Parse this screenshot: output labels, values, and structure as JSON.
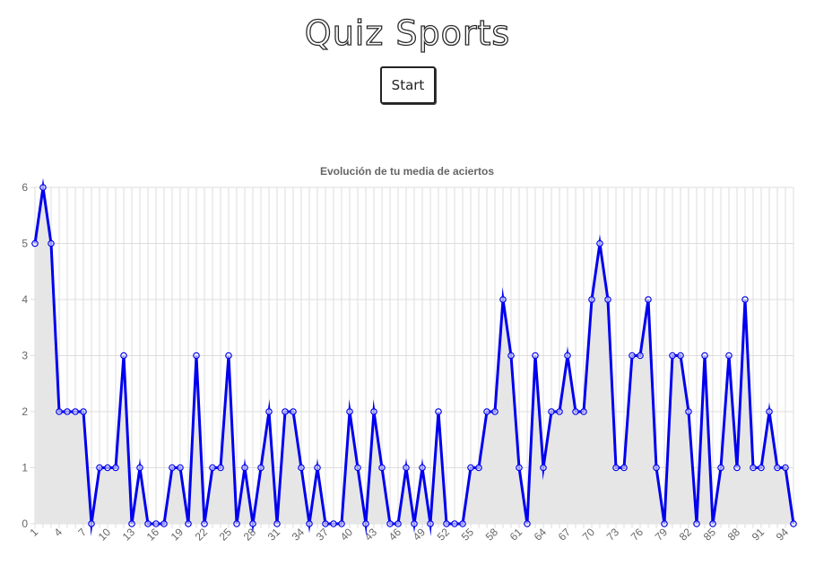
{
  "header": {
    "title": "Quiz Sports",
    "start_label": "Start"
  },
  "chart_data": {
    "type": "line",
    "title": "Evolución de tu media de aciertos",
    "x": [
      1,
      2,
      3,
      4,
      5,
      6,
      7,
      8,
      9,
      10,
      11,
      12,
      13,
      14,
      15,
      16,
      17,
      18,
      19,
      20,
      21,
      22,
      23,
      24,
      25,
      26,
      27,
      28,
      29,
      30,
      31,
      32,
      33,
      34,
      35,
      36,
      37,
      38,
      39,
      40,
      41,
      42,
      43,
      44,
      45,
      46,
      47,
      48,
      49,
      50,
      51,
      52,
      53,
      54,
      55,
      56,
      57,
      58,
      59,
      60,
      61,
      62,
      63,
      64,
      65,
      66,
      67,
      68,
      69,
      70,
      71,
      72,
      73,
      74,
      75,
      76,
      77,
      78,
      79,
      80,
      81,
      82,
      83,
      84,
      85,
      86,
      87,
      88,
      89,
      90,
      91,
      92,
      93,
      94,
      95
    ],
    "x_tick_labels": [
      "1",
      "4",
      "7",
      "10",
      "13",
      "16",
      "19",
      "22",
      "25",
      "28",
      "31",
      "34",
      "37",
      "40",
      "43",
      "46",
      "49",
      "52",
      "55",
      "58",
      "61",
      "64",
      "67",
      "70",
      "73",
      "76",
      "79",
      "82",
      "85",
      "88",
      "91",
      "94"
    ],
    "y_ticks": [
      "0",
      "1",
      "2",
      "3",
      "4",
      "5",
      "6"
    ],
    "series": [
      {
        "values": [
          5,
          6,
          5,
          2,
          2,
          2,
          2,
          0,
          1,
          1,
          1,
          3,
          0,
          1,
          0,
          0,
          0,
          1,
          1,
          0,
          3,
          0,
          1,
          1,
          3,
          0,
          1,
          0,
          1,
          2,
          0,
          2,
          2,
          1,
          0,
          1,
          0,
          0,
          0,
          2,
          1,
          0,
          2,
          1,
          0,
          0,
          1,
          0,
          1,
          0,
          2,
          0,
          0,
          0,
          1,
          1,
          2,
          2,
          4,
          3,
          1,
          0,
          3,
          1,
          2,
          2,
          3,
          2,
          2,
          4,
          5,
          4,
          1,
          1,
          3,
          3,
          4,
          1,
          0,
          3,
          3,
          2,
          0,
          3,
          0,
          1,
          3,
          1,
          4,
          1,
          1,
          2,
          1,
          1,
          0
        ]
      }
    ],
    "ylim": [
      0,
      6
    ],
    "grid": true,
    "colors": {
      "line": "#0000ee",
      "fill": "#e6e6e6",
      "grid": "#dddddd",
      "tick_text": "#666666",
      "title_text": "#666666"
    }
  }
}
